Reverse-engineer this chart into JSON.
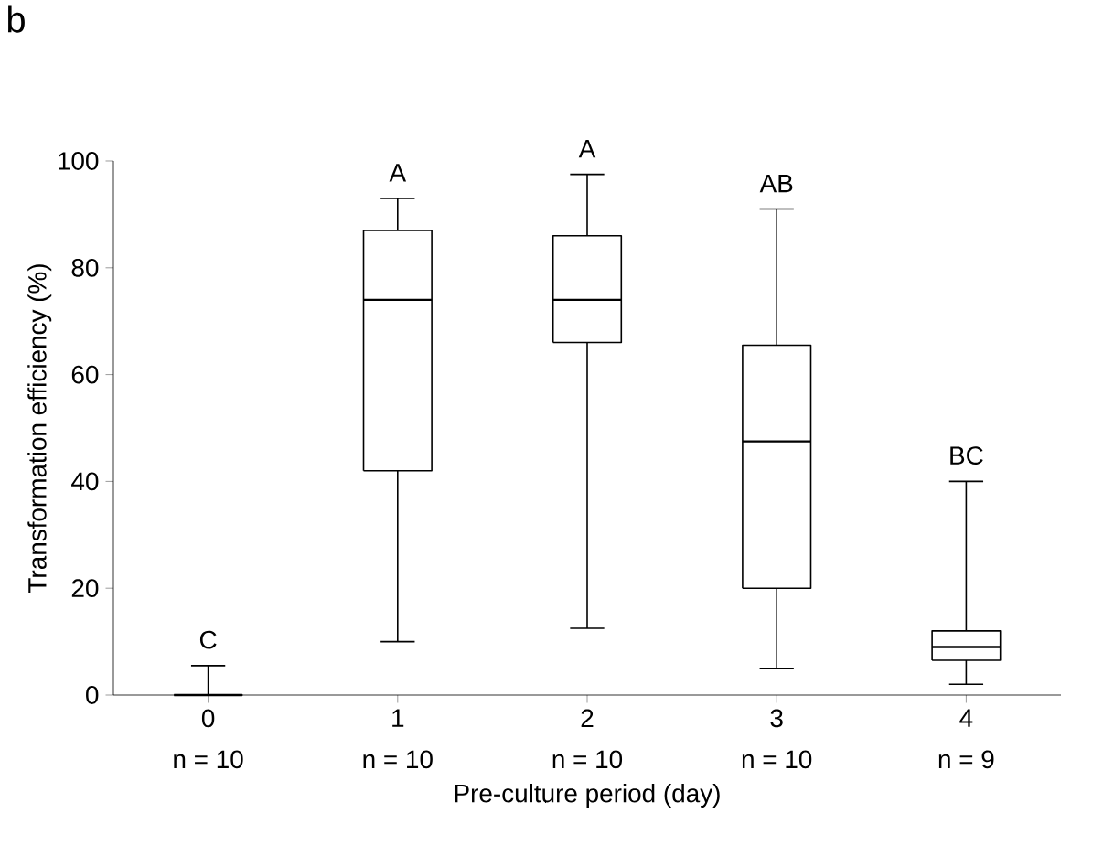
{
  "chart_data": {
    "type": "box",
    "xlabel": "Pre-culture period (day)",
    "ylabel": "Transformation efficiency (%)",
    "categories": [
      "0",
      "1",
      "2",
      "3",
      "4"
    ],
    "boxes": [
      {
        "low": 0,
        "q1": 0,
        "median": 0,
        "q3": 0,
        "high": 5.5
      },
      {
        "low": 10,
        "q1": 42,
        "median": 74,
        "q3": 87,
        "high": 93
      },
      {
        "low": 12.5,
        "q1": 66,
        "median": 74,
        "q3": 86,
        "high": 97.5
      },
      {
        "low": 5,
        "q1": 20,
        "median": 47.5,
        "q3": 65.5,
        "high": 91
      },
      {
        "low": 2,
        "q1": 6.5,
        "median": 9,
        "q3": 12,
        "high": 40
      }
    ],
    "ylim": [
      0,
      100
    ],
    "yticks": [
      0,
      20,
      40,
      60,
      80,
      100
    ],
    "annotations": [
      "b",
      "C",
      "A",
      "A",
      "AB",
      "BC",
      "n = 10",
      "n = 10",
      "n = 10",
      "n = 10",
      "n = 9"
    ]
  }
}
